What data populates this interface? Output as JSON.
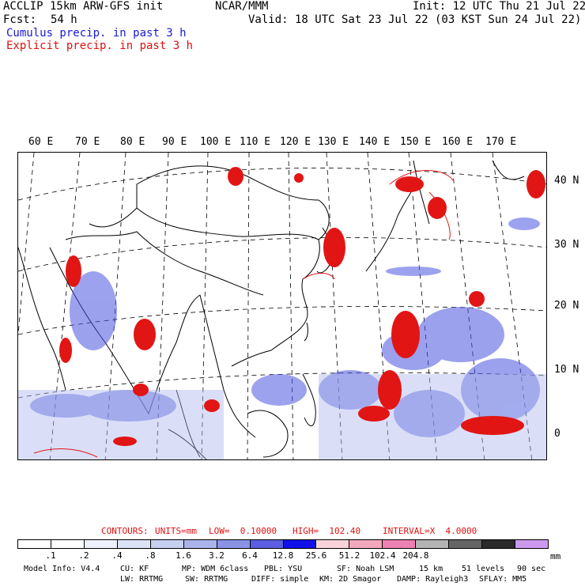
{
  "header": {
    "title_left": "ACCLIP 15km ARW-GFS init",
    "center": "NCAR/MMM",
    "init": "Init: 12 UTC Thu 21 Jul 22",
    "fcst_label": "Fcst:",
    "fcst_value": "54 h",
    "valid": "Valid: 18 UTC Sat 23 Jul 22 (03 KST Sun 24 Jul 22)",
    "legend_cumulus": "Cumulus precip. in past 3 h",
    "legend_explicit": "Explicit precip. in past 3 h"
  },
  "map": {
    "lon_labels": [
      "60 E",
      "70 E",
      "80 E",
      "90 E",
      "100 E",
      "110 E",
      "120 E",
      "130 E",
      "140 E",
      "150 E",
      "160 E",
      "170 E"
    ],
    "lat_labels": [
      "40 N",
      "30 N",
      "20 N",
      "10 N",
      "0"
    ],
    "colors": {
      "cumulus": "#3344dd",
      "explicit": "#e21515",
      "coast": "#000000",
      "grid": "#000000"
    }
  },
  "contours": {
    "prefix": "CONTOURS:",
    "units": "UNITS=mm",
    "low": "LOW=  0.10000",
    "high": "HIGH=  102.40",
    "interval": "INTERVAL=X  4.0000"
  },
  "colorbar": {
    "labels": [
      ".1",
      ".2",
      ".4",
      ".8",
      "1.6",
      "3.2",
      "6.4",
      "12.8",
      "25.6",
      "51.2",
      "102.4",
      "204.8"
    ],
    "unit": "mm",
    "colors": [
      "#ffffff",
      "#ffffff",
      "#eef1fb",
      "#dde3f7",
      "#c8d0f2",
      "#aab3ea",
      "#8a93e4",
      "#5a5ee0",
      "#1010e8",
      "#f8d4da",
      "#f2a8bc",
      "#ee80b2",
      "#b4b4b4",
      "#646464",
      "#2a2a2a",
      "#cc99ee"
    ]
  },
  "footer": {
    "model_info": "Model Info: V4.4",
    "cu": "CU: KF",
    "mp": "MP: WDM 6class",
    "pbl": "PBL: YSU",
    "sf": "SF: Noah LSM",
    "res": "15 km",
    "levels": "51 levels",
    "dt": "90 sec",
    "lw": "LW: RRTMG",
    "sw": "SW: RRTMG",
    "diff": "DIFF: simple",
    "km": "KM: 2D Smagor",
    "damp": "DAMP: Rayleigh3",
    "sflay": "SFLAY: MM5"
  }
}
